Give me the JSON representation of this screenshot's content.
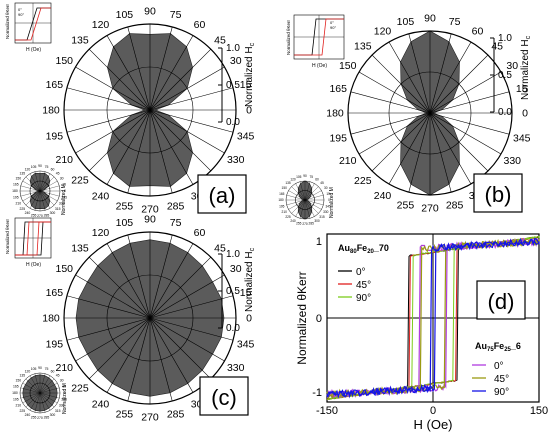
{
  "colors": {
    "lobe": "#5b5b5b",
    "grid": "#000000",
    "black": "#000000",
    "red": "#e0201e",
    "green": "#7ccd1c",
    "purple": "#b03be0",
    "olive": "#9a9a12",
    "blue": "#1414e6"
  },
  "angle_labels": [
    "0",
    "15",
    "30",
    "45",
    "60",
    "75",
    "90",
    "105",
    "120",
    "135",
    "150",
    "165",
    "180",
    "195",
    "210",
    "225",
    "240",
    "255",
    "270",
    "285",
    "300",
    "315",
    "330",
    "345"
  ],
  "tick_labels": [
    "0.0",
    "0.5",
    "1.0"
  ],
  "normalized_hc_label": "Normalized H",
  "normalized_hc_sub": "c",
  "normalized_m_label": "Normalized M",
  "panel_labels": {
    "a": "(a)",
    "b": "(b)",
    "c": "(c)",
    "d": "(d)"
  },
  "inset": {
    "xlabel": "H (Oe)",
    "ylabel": "Normalized θKerr",
    "leg0": "0°",
    "leg90": "90°"
  },
  "chart_data": [
    {
      "panel": "a",
      "type": "polar",
      "series": [
        {
          "r": [
            0.06,
            0.22,
            0.5,
            0.7,
            0.85,
            0.92,
            0.88,
            0.92,
            0.85,
            0.7,
            0.5,
            0.22,
            0.06,
            0.22,
            0.5,
            0.7,
            0.85,
            0.92,
            0.88,
            0.92,
            0.85,
            0.7,
            0.5,
            0.22
          ]
        }
      ]
    },
    {
      "panel": "b",
      "type": "polar",
      "series": [
        {
          "r": [
            0.04,
            0.15,
            0.32,
            0.5,
            0.72,
            0.9,
            1.0,
            0.9,
            0.72,
            0.5,
            0.32,
            0.15,
            0.04,
            0.15,
            0.32,
            0.5,
            0.72,
            0.9,
            1.0,
            0.9,
            0.72,
            0.5,
            0.32,
            0.15
          ]
        }
      ]
    },
    {
      "panel": "c",
      "type": "polar",
      "series": [
        {
          "r": [
            0.86,
            0.86,
            0.84,
            0.86,
            0.88,
            0.9,
            0.91,
            0.9,
            0.88,
            0.86,
            0.84,
            0.86,
            0.86,
            0.86,
            0.84,
            0.86,
            0.88,
            0.9,
            0.91,
            0.9,
            0.88,
            0.86,
            0.84,
            0.86
          ]
        }
      ]
    },
    {
      "panel": "d",
      "type": "line",
      "xlabel": "H (Oe)",
      "ylabel": "Normalized θKerr",
      "xlim": [
        -150,
        150
      ],
      "ylim": [
        -1.15,
        1.15
      ],
      "xticks": [
        "-150",
        "0",
        "150"
      ],
      "yticks": [
        "1",
        "0",
        "-1"
      ],
      "legend1_title": "Au80Fe20_70",
      "legend1_title_parts": {
        "a": "Au",
        "b": "80",
        "c": "Fe",
        "d": "20",
        "e": "_70"
      },
      "legend2_title": "Au75Fe25_6",
      "legend2_title_parts": {
        "a": "Au",
        "b": "75",
        "c": "Fe",
        "d": "25",
        "e": "_6"
      },
      "series": [
        {
          "name": "0°",
          "group": 1,
          "hc": 35
        },
        {
          "name": "45°",
          "group": 1,
          "hc": 33
        },
        {
          "name": "90°",
          "group": 1,
          "hc": 30
        },
        {
          "name": "0°",
          "group": 2,
          "hc": 20
        },
        {
          "name": "45°",
          "group": 2,
          "hc": 18
        },
        {
          "name": "90°",
          "group": 2,
          "hc": 3
        }
      ]
    }
  ]
}
